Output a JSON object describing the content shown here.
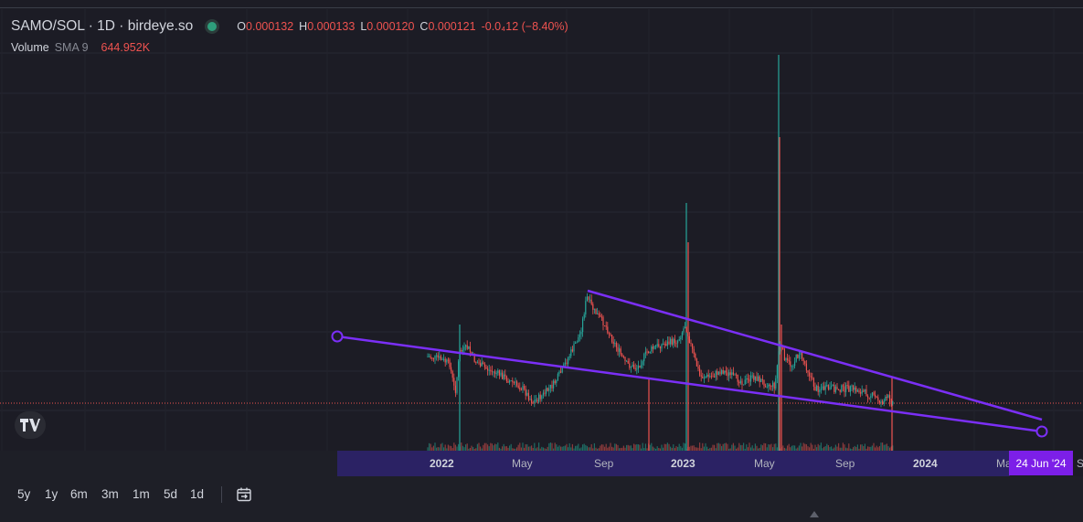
{
  "legend": {
    "symbol": "SAMO/SOL · 1D · birdeye.so",
    "open_key": "O",
    "open": "0.000132",
    "high_key": "H",
    "high": "0.000133",
    "low_key": "L",
    "low": "0.000120",
    "close_key": "C",
    "close": "0.000121",
    "change": "-0.0₄12 (−8.40%)",
    "volume_label": "Volume",
    "volume_sma": "SMA 9",
    "volume_value": "644.952K"
  },
  "colors": {
    "up": "#26a69a",
    "down": "#ef5350",
    "trendline": "#7b2ff7",
    "price_line": "#ef5350",
    "time_band": "#2b2264",
    "crosshair_label": "#7c1fe8"
  },
  "time_axis": {
    "ticks": [
      {
        "label": "2022",
        "bold": true
      },
      {
        "label": "May",
        "bold": false
      },
      {
        "label": "Sep",
        "bold": false
      },
      {
        "label": "2023",
        "bold": true
      },
      {
        "label": "May",
        "bold": false
      },
      {
        "label": "Sep",
        "bold": false
      },
      {
        "label": "2024",
        "bold": true
      },
      {
        "label": "Ma",
        "bold": false
      },
      {
        "label": "S",
        "bold": false
      }
    ],
    "crosshair_date": "24 Jun '24"
  },
  "range_buttons": [
    "5y",
    "1y",
    "6m",
    "3m",
    "1m",
    "5d",
    "1d"
  ],
  "icons": {
    "logo": "tradingview-logo-icon",
    "compare": "date-range-icon",
    "status_dot": "market-status-dot"
  }
}
